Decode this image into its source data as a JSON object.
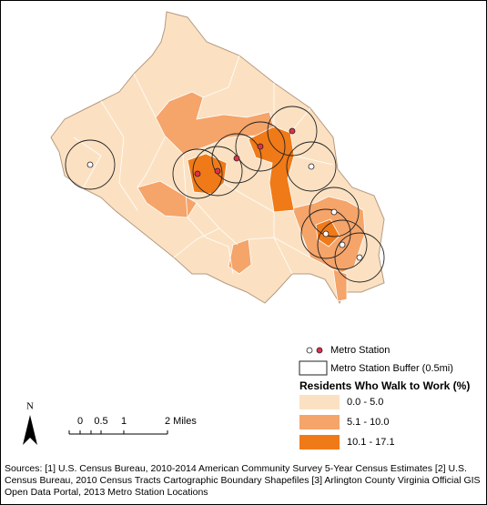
{
  "legend": {
    "metro_station": "Metro Station",
    "buffer": "Metro Station Buffer (0.5mi)",
    "title": "Residents Who Walk to Work (%)",
    "classes": [
      "0.0 - 5.0",
      "5.1 - 10.0",
      "10.1 - 17.1"
    ]
  },
  "scale_bar": {
    "labels": [
      "0",
      "0.5",
      "1",
      "2 Miles"
    ]
  },
  "north_arrow": "N",
  "sources": "Sources: [1] U.S. Census Bureau, 2010-2014 American Community Survey 5-Year Census Estimates [2] U.S. Census Bureau, 2010 Census Tracts Cartographic Boundary Shapefiles [3] Arlington County Virginia Official GIS Open Data Portal, 2013 Metro Station Locations"
}
